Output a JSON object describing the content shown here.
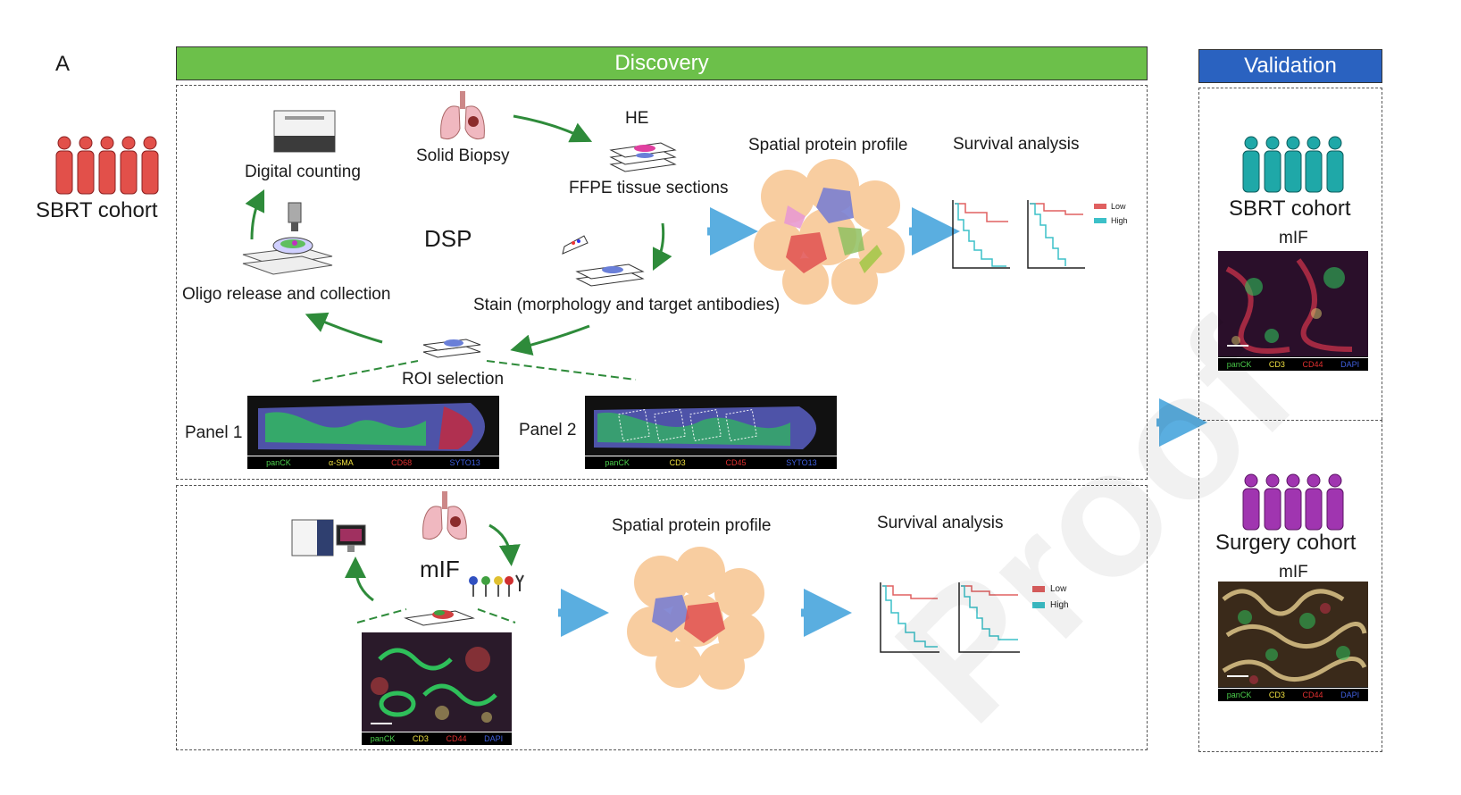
{
  "panel_letter": "A",
  "discovery": {
    "title": "Discovery",
    "color": "#6cc04a"
  },
  "validation": {
    "title": "Validation",
    "color": "#2a62c0",
    "sbrt_cohort": {
      "label": "SBRT cohort",
      "method": "mIF",
      "markers": [
        "panCK",
        "CD3",
        "CD44",
        "DAPI"
      ]
    },
    "surgery_cohort": {
      "label": "Surgery cohort",
      "method": "mIF",
      "markers": [
        "panCK",
        "CD3",
        "CD44",
        "DAPI"
      ]
    }
  },
  "left_cohort": {
    "label": "SBRT cohort",
    "icon": "people-group-icon",
    "color": "#e2504a"
  },
  "dsp": {
    "center_label": "DSP",
    "steps": {
      "digital_counting": "Digital counting",
      "solid_biopsy": "Solid Biopsy",
      "he": "HE",
      "ffpe": "FFPE tissue sections",
      "oligo": "Oligo release and collection",
      "stain": "Stain (morphology and target antibodies)",
      "roi": "ROI selection"
    },
    "panel1": {
      "label": "Panel 1",
      "markers": [
        "panCK",
        "α-SMA",
        "CD68",
        "SYTO13"
      ]
    },
    "panel2": {
      "label": "Panel 2",
      "markers": [
        "panCK",
        "CD3",
        "CD45",
        "SYTO13"
      ]
    },
    "spatial_profile": "Spatial protein profile",
    "survival": {
      "title": "Survival analysis",
      "legend": [
        "Low",
        "High"
      ]
    }
  },
  "mif": {
    "center_label": "mIF",
    "markers": [
      "panCK",
      "CD3",
      "CD44",
      "DAPI"
    ],
    "spatial_profile": "Spatial protein profile",
    "survival": {
      "title": "Survival analysis",
      "legend": [
        "Low",
        "High"
      ]
    }
  },
  "colors": {
    "green_arrow": "#2e8b3a",
    "blue_arrow": "#5aaee0",
    "low_line": "#e06060",
    "high_line": "#3cc0c8",
    "teal_people": "#1fa8a8",
    "purple_people": "#a035b0"
  },
  "watermark": "Proof"
}
